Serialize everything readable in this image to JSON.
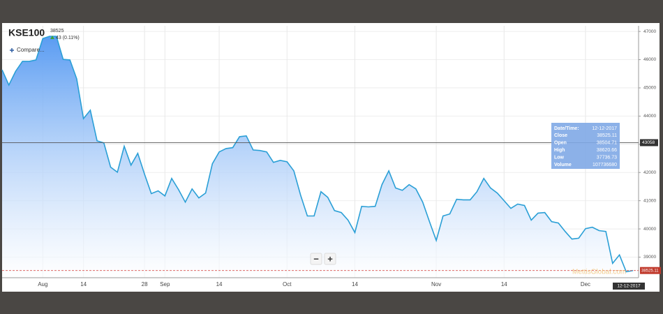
{
  "header": {
    "symbol": "KSE100",
    "price": "38525",
    "change": "43 (0.11%)",
    "compare": "Compare..."
  },
  "chart_data": {
    "type": "area",
    "categories": [
      null,
      null,
      null,
      null,
      null,
      null,
      "Aug",
      null,
      null,
      null,
      null,
      null,
      "14",
      null,
      null,
      null,
      null,
      null,
      null,
      null,
      null,
      "28",
      null,
      null,
      "Sep",
      null,
      null,
      null,
      null,
      null,
      null,
      null,
      "14",
      null,
      null,
      null,
      null,
      null,
      null,
      null,
      null,
      null,
      "Oct",
      null,
      null,
      null,
      null,
      null,
      null,
      null,
      null,
      null,
      "14",
      null,
      null,
      null,
      null,
      null,
      null,
      null,
      null,
      null,
      null,
      null,
      "Nov",
      null,
      null,
      null,
      null,
      null,
      null,
      null,
      null,
      null,
      "14",
      null,
      null,
      null,
      null,
      null,
      null,
      null,
      null,
      null,
      null,
      null,
      "Dec",
      null,
      null,
      null,
      null,
      null,
      null,
      null
    ],
    "values": [
      45640,
      45100,
      45590,
      45940,
      45940,
      45990,
      46750,
      46830,
      46830,
      46010,
      45990,
      45320,
      43910,
      44210,
      43120,
      43050,
      42190,
      42010,
      42930,
      42260,
      42680,
      41940,
      41250,
      41350,
      41170,
      41790,
      41400,
      40950,
      41420,
      41100,
      41270,
      42310,
      42730,
      42850,
      42880,
      43270,
      43300,
      42800,
      42780,
      42730,
      42360,
      42430,
      42380,
      42060,
      41200,
      40460,
      40460,
      41320,
      41120,
      40650,
      40580,
      40310,
      39870,
      40800,
      40780,
      40800,
      41570,
      42060,
      41450,
      41370,
      41570,
      41420,
      40950,
      40260,
      39590,
      40460,
      40530,
      41050,
      41030,
      41030,
      41320,
      41790,
      41450,
      41270,
      41000,
      40730,
      40880,
      40830,
      40310,
      40560,
      40580,
      40260,
      40210,
      39910,
      39640,
      39670,
      40010,
      40060,
      39940,
      39910,
      38780,
      39080,
      38480,
      38525.11
    ],
    "color": "#2a9fd6",
    "ylim": [
      38270,
      47200
    ],
    "yticks": [
      39000,
      40000,
      41000,
      42000,
      43000,
      44000,
      45000,
      46000,
      47000
    ],
    "grid": true,
    "crosshair_value": 43058,
    "watermark": "MettisGlobal.com",
    "zoom": [
      "−",
      "+"
    ],
    "tooltip": {
      "label": "Date/Time:",
      "date": "12-12-2017",
      "rows": [
        [
          "Close",
          "38525.11"
        ],
        [
          "Open",
          "38504.71"
        ],
        [
          "High",
          "38620.66"
        ],
        [
          "Low",
          "37736.73"
        ],
        [
          "Volume",
          "107736680"
        ]
      ]
    }
  }
}
